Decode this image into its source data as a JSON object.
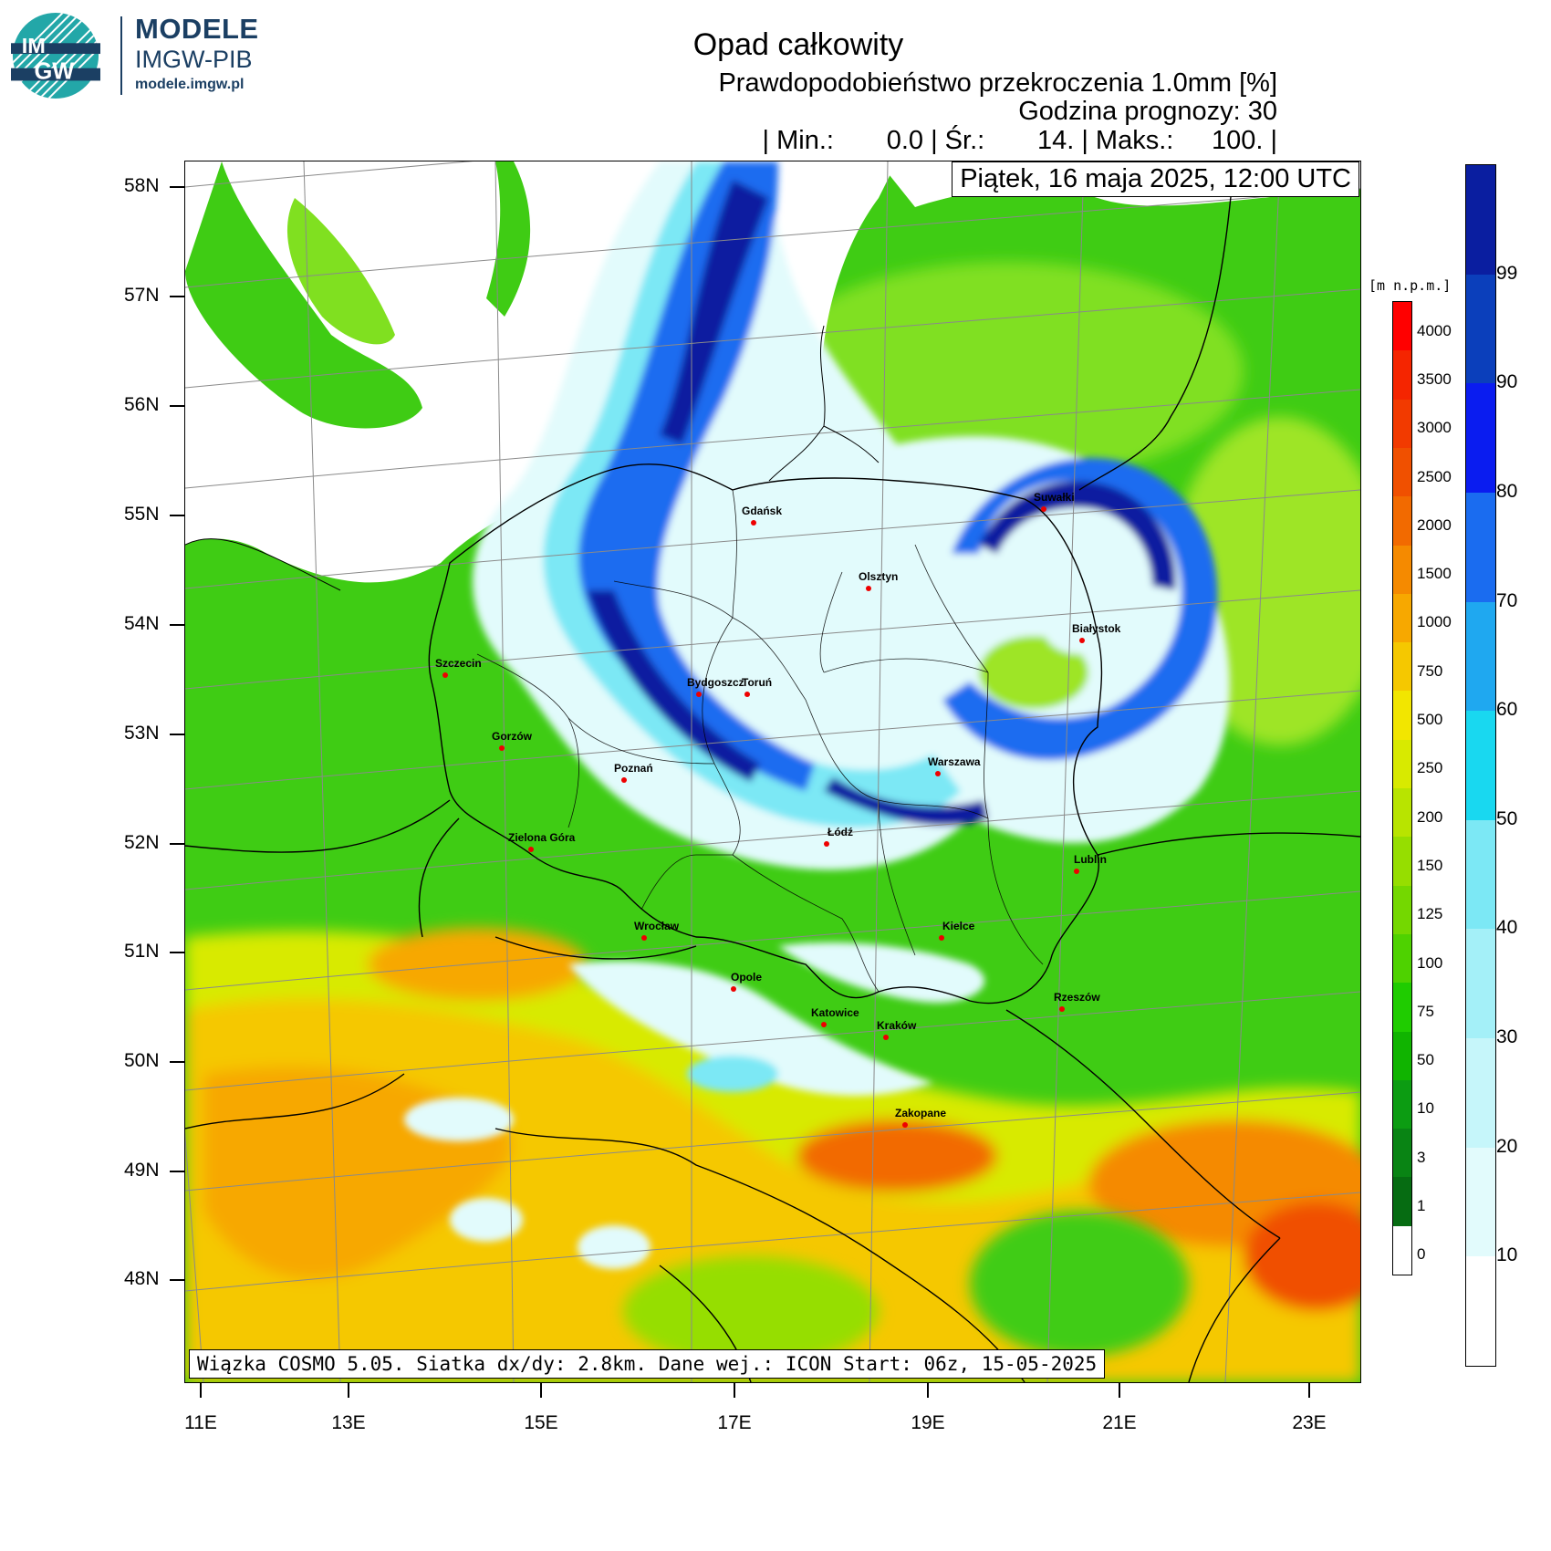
{
  "brand": {
    "logo_text_top": "IM",
    "logo_text_bottom": "GW",
    "title": "MODELE",
    "subtitle": "IMGW-PIB",
    "url": "modele.imgw.pl"
  },
  "header": {
    "title": "Opad całkowity",
    "product": "Prawdopodobieństwo przekroczenia 1.0mm [%]",
    "forecast_hour": "Godzina prognozy: 30",
    "stats": {
      "min_label": "| Min.:",
      "min_value": "0.0",
      "mean_label": "| Śr.:",
      "mean_value": "14.",
      "max_label": "| Maks.:",
      "max_value": "100.",
      "end": "|"
    }
  },
  "map": {
    "date": "Piątek, 16 maja 2025, 12:00 UTC",
    "info": "Wiązka COSMO 5.05. Siatka dx/dy: 2.8km. Dane wej.: ICON Start: 06z, 15-05-2025",
    "latitudes": [
      "58N",
      "57N",
      "56N",
      "55N",
      "54N",
      "53N",
      "52N",
      "51N",
      "50N",
      "49N",
      "48N"
    ],
    "longitudes": [
      "11E",
      "13E",
      "15E",
      "17E",
      "19E",
      "21E",
      "23E"
    ],
    "cities": [
      {
        "name": "Gdańsk"
      },
      {
        "name": "Olsztyn"
      },
      {
        "name": "Suwałki"
      },
      {
        "name": "Białystok"
      },
      {
        "name": "Szczecin"
      },
      {
        "name": "Bydgoszcz"
      },
      {
        "name": "Toruń"
      },
      {
        "name": "Gorzów"
      },
      {
        "name": "Poznań"
      },
      {
        "name": "Warszawa"
      },
      {
        "name": "Zielona Góra"
      },
      {
        "name": "Łódź"
      },
      {
        "name": "Lublin"
      },
      {
        "name": "Wrocław"
      },
      {
        "name": "Kielce"
      },
      {
        "name": "Opole"
      },
      {
        "name": "Rzeszów"
      },
      {
        "name": "Katowice"
      },
      {
        "name": "Kraków"
      },
      {
        "name": "Zakopane"
      }
    ]
  },
  "elevation_legend": {
    "unit": "[m n.p.m.]",
    "labels": [
      "4000",
      "3500",
      "3000",
      "2500",
      "2000",
      "1500",
      "1000",
      "750",
      "500",
      "250",
      "200",
      "150",
      "125",
      "100",
      "75",
      "50",
      "10",
      "3",
      "1",
      "0"
    ],
    "colors": [
      "#ff0000",
      "#f52500",
      "#f23a00",
      "#f05000",
      "#f26a00",
      "#f58a00",
      "#f7a800",
      "#f5c800",
      "#f2e600",
      "#d8ea00",
      "#b8e400",
      "#96de00",
      "#74d800",
      "#4ed200",
      "#1fcc00",
      "#10b400",
      "#0c9c12",
      "#098414",
      "#066c12",
      "#ffffff"
    ]
  },
  "probability_legend": {
    "labels": [
      "99",
      "90",
      "80",
      "70",
      "60",
      "50",
      "40",
      "30",
      "20",
      "10"
    ],
    "colors": [
      "#0a1ea0",
      "#0b3fbb",
      "#0a1cf0",
      "#1a6cf0",
      "#1fa8f0",
      "#19d8f0",
      "#7ce8f5",
      "#a4f0f8",
      "#c6f6fa",
      "#e2fbfc",
      "#ffffff"
    ]
  }
}
